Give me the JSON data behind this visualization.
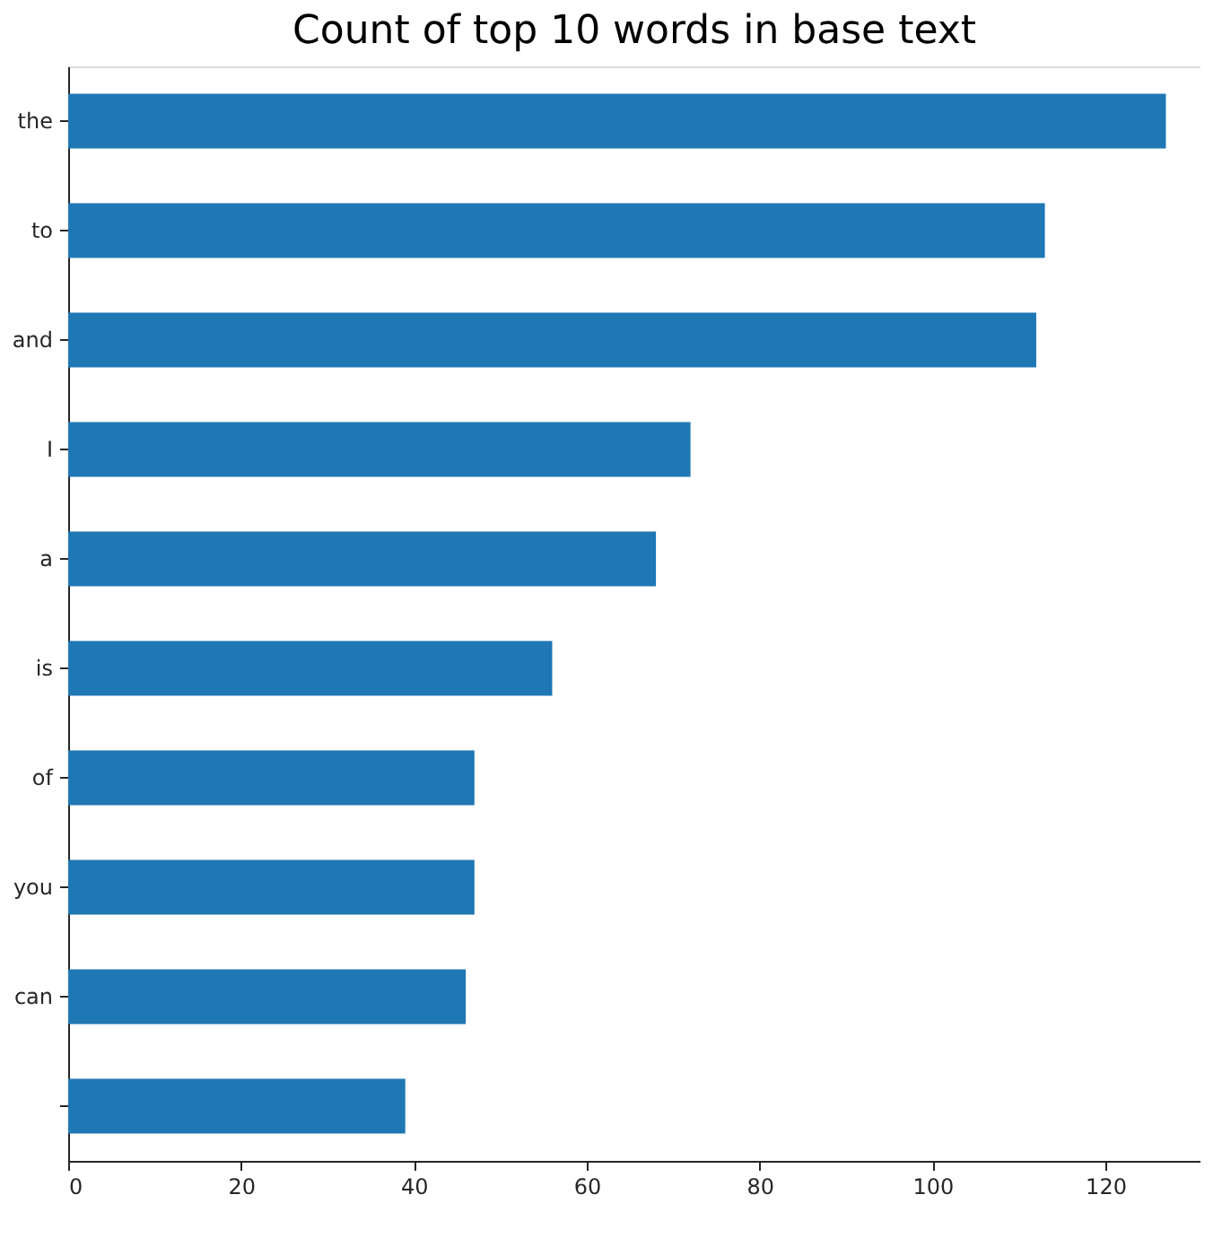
{
  "chart_data": {
    "type": "bar",
    "orientation": "horizontal",
    "title": "Count of top 10 words in base text",
    "categories": [
      "the",
      "to",
      "and",
      "I",
      "a",
      "is",
      "of",
      "you",
      "can",
      null
    ],
    "values": [
      127,
      113,
      112,
      72,
      68,
      56,
      47,
      47,
      46,
      39
    ],
    "color": "#1f77b4",
    "xlim": [
      0,
      131
    ],
    "xticks": [
      0,
      20,
      40,
      60,
      80,
      100,
      120
    ],
    "grid": false
  }
}
